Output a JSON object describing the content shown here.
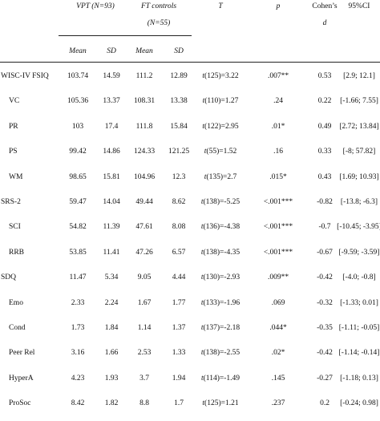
{
  "header": {
    "group1": "VPT (N=93)",
    "group2_line1": "FT controls",
    "group2_line2": "(N=55)",
    "t_col": "T",
    "p_col": "p",
    "d_line1": "Cohen’s",
    "d_line2": "d",
    "ci_col": "95%CI",
    "sub": [
      "Mean",
      "SD",
      "Mean",
      "SD"
    ]
  },
  "rows": [
    {
      "label": "WISC-IV FSIQ",
      "m1": "103.74",
      "sd1": "14.59",
      "m2": "111.2",
      "sd2": "12.89",
      "t_df": "t(125)=3.22",
      "p": ".007**",
      "d": "0.53",
      "ci": "[2.9; 12.1]"
    },
    {
      "label": "VC",
      "m1": "105.36",
      "sd1": "13.37",
      "m2": "108.31",
      "sd2": "13.38",
      "t_df": "t(110)=1.27",
      "p": ".24",
      "d": "0.22",
      "ci": "[-1.66; 7.55]"
    },
    {
      "label": "PR",
      "m1": "103",
      "sd1": "17.4",
      "m2": "111.8",
      "sd2": "15.84",
      "t_df": "t(122)=2.95",
      "p": ".01*",
      "d": "0.49",
      "ci": "[2.72; 13.84]"
    },
    {
      "label": "PS",
      "m1": "99.42",
      "sd1": "14.86",
      "m2": "124.33",
      "sd2": "121.25",
      "t_df": "t(55)=1.52",
      "p": ".16",
      "d": "0.33",
      "ci": "[-8; 57.82]"
    },
    {
      "label": "WM",
      "m1": "98.65",
      "sd1": "15.81",
      "m2": "104.96",
      "sd2": "12.3",
      "t_df": "t(135)=2.7",
      "p": ".015*",
      "d": "0.43",
      "ci": "[1.69; 10.93]"
    },
    {
      "label": "SRS-2",
      "m1": "59.47",
      "sd1": "14.04",
      "m2": "49.44",
      "sd2": "8.62",
      "t_df": "t(138)=-5.25",
      "p": "<.001***",
      "d": "-0.82",
      "ci": "[-13.8; -6.3]"
    },
    {
      "label": "SCI",
      "m1": "54.82",
      "sd1": "11.39",
      "m2": "47.61",
      "sd2": "8.08",
      "t_df": "t(136)=-4.38",
      "p": "<.001***",
      "d": "-0.7",
      "ci": "[-10.45; -3.95]"
    },
    {
      "label": "RRB",
      "m1": "53.85",
      "sd1": "11.41",
      "m2": "47.26",
      "sd2": "6.57",
      "t_df": "t(138)=-4.35",
      "p": "<.001***",
      "d": "-0.67",
      "ci": "[-9.59; -3.59]"
    },
    {
      "label": "SDQ",
      "m1": "11.47",
      "sd1": "5.34",
      "m2": "9.05",
      "sd2": "4.44",
      "t_df": "t(130)=-2.93",
      "p": ".009**",
      "d": "-0.42",
      "ci": "[-4.0; -0.8]"
    },
    {
      "label": "Emo",
      "m1": "2.33",
      "sd1": "2.24",
      "m2": "1.67",
      "sd2": "1.77",
      "t_df": "t(133)=-1.96",
      "p": ".069",
      "d": "-0.32",
      "ci": "[-1.33; 0.01]"
    },
    {
      "label": "Cond",
      "m1": "1.73",
      "sd1": "1.84",
      "m2": "1.14",
      "sd2": "1.37",
      "t_df": "t(137)=-2.18",
      "p": ".044*",
      "d": "-0.35",
      "ci": "[-1.11; -0.05]"
    },
    {
      "label": "Peer Rel",
      "m1": "3.16",
      "sd1": "1.66",
      "m2": "2.53",
      "sd2": "1.33",
      "t_df": "t(138)=-2.55",
      "p": ".02*",
      "d": "-0.42",
      "ci": "[-1.14; -0.14]"
    },
    {
      "label": "HyperA",
      "m1": "4.23",
      "sd1": "1.93",
      "m2": "3.7",
      "sd2": "1.94",
      "t_df": "t(114)=-1.49",
      "p": ".145",
      "d": "-0.27",
      "ci": "[-1.18; 0.13]"
    },
    {
      "label": "ProSoc",
      "m1": "8.42",
      "sd1": "1.82",
      "m2": "8.8",
      "sd2": "1.7",
      "t_df": "t(125)=1.21",
      "p": ".237",
      "d": "0.2",
      "ci": "[-0.24; 0.98]"
    }
  ]
}
